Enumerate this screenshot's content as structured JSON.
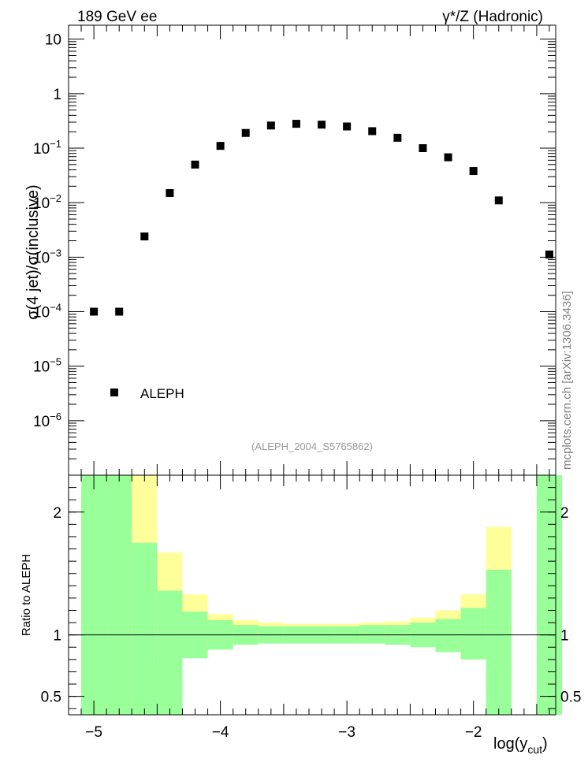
{
  "header": {
    "left": "189 GeV ee",
    "right": "γ*/Z (Hadronic)"
  },
  "watermark": "mcplots.cern.ch [arXiv:1306.3436]",
  "analysis_id": "(ALEPH_2004_S5765862)",
  "colors": {
    "green_band": "#99ff99",
    "yellow_band": "#ffff99",
    "marker": "#000000",
    "watermark": "#808080"
  },
  "chart_data": [
    {
      "type": "scatter",
      "panel": "main",
      "ylabel": "σ(4 jet)/σ(inclusive)",
      "yscale": "log",
      "ylim": [
        1e-07,
        18
      ],
      "xlim": [
        -5.2,
        -1.35
      ],
      "yticks": [
        {
          "value": 10,
          "label": "10"
        },
        {
          "value": 1,
          "label": "1"
        },
        {
          "value": 0.1,
          "base": "10",
          "exp": "−1"
        },
        {
          "value": 0.01,
          "base": "10",
          "exp": "−2"
        },
        {
          "value": 0.001,
          "base": "10",
          "exp": "−3"
        },
        {
          "value": 0.0001,
          "base": "10",
          "exp": "−4"
        },
        {
          "value": 1e-05,
          "base": "10",
          "exp": "−5"
        },
        {
          "value": 1e-06,
          "base": "10",
          "exp": "−6"
        }
      ],
      "legend": {
        "label": "ALEPH",
        "placement": "bottom-left"
      },
      "series": [
        {
          "name": "ALEPH",
          "x": [
            -5.0,
            -4.8,
            -4.6,
            -4.4,
            -4.2,
            -4.0,
            -3.8,
            -3.6,
            -3.4,
            -3.2,
            -3.0,
            -2.8,
            -2.6,
            -2.4,
            -2.2,
            -2.0,
            -1.8,
            -1.4
          ],
          "y": [
            0.0001,
            0.0001,
            0.0024,
            0.015,
            0.05,
            0.11,
            0.19,
            0.26,
            0.28,
            0.27,
            0.25,
            0.205,
            0.155,
            0.1,
            0.068,
            0.038,
            0.011,
            0.00112
          ]
        }
      ]
    },
    {
      "type": "area",
      "panel": "ratio",
      "ylabel": "Ratio to ALEPH",
      "xlabel": "log(y_cut)",
      "xlabel_main": "log(y",
      "xlabel_sub": "cut",
      "xlabel_close": ")",
      "ylim": [
        0.35,
        2.3
      ],
      "xlim": [
        -5.2,
        -1.35
      ],
      "reference_line": 1,
      "yticks": [
        {
          "value": 2,
          "label": "2"
        },
        {
          "value": 1,
          "label": "1"
        },
        {
          "value": 0.5,
          "label": "0.5"
        }
      ],
      "xticks": [
        {
          "value": -5,
          "label": "−5"
        },
        {
          "value": -4,
          "label": "−4"
        },
        {
          "value": -3,
          "label": "−3"
        },
        {
          "value": -2,
          "label": "−2"
        }
      ],
      "bins": [
        {
          "lo": -5.1,
          "hi": -4.9,
          "g": [
            0.35,
            2.3
          ],
          "y": [
            0.35,
            2.3
          ]
        },
        {
          "lo": -4.9,
          "hi": -4.7,
          "g": [
            0.35,
            2.3
          ],
          "y": [
            0.35,
            2.3
          ]
        },
        {
          "lo": -4.7,
          "hi": -4.5,
          "g": [
            0.35,
            1.75
          ],
          "y": [
            0.35,
            2.3
          ]
        },
        {
          "lo": -4.5,
          "hi": -4.3,
          "g": [
            0.35,
            1.36
          ],
          "y": [
            0.75,
            1.67
          ]
        },
        {
          "lo": -4.3,
          "hi": -4.1,
          "g": [
            0.81,
            1.19
          ],
          "y": [
            0.88,
            1.33
          ]
        },
        {
          "lo": -4.1,
          "hi": -3.9,
          "g": [
            0.88,
            1.12
          ],
          "y": [
            0.93,
            1.17
          ]
        },
        {
          "lo": -3.9,
          "hi": -3.7,
          "g": [
            0.92,
            1.08
          ],
          "y": [
            0.95,
            1.12
          ]
        },
        {
          "lo": -3.7,
          "hi": -3.5,
          "g": [
            0.93,
            1.07
          ],
          "y": [
            0.96,
            1.1
          ]
        },
        {
          "lo": -3.5,
          "hi": -3.3,
          "g": [
            0.93,
            1.07
          ],
          "y": [
            0.96,
            1.09
          ]
        },
        {
          "lo": -3.3,
          "hi": -3.1,
          "g": [
            0.93,
            1.07
          ],
          "y": [
            0.96,
            1.09
          ]
        },
        {
          "lo": -3.1,
          "hi": -2.9,
          "g": [
            0.93,
            1.07
          ],
          "y": [
            0.96,
            1.09
          ]
        },
        {
          "lo": -2.9,
          "hi": -2.7,
          "g": [
            0.93,
            1.08
          ],
          "y": [
            0.96,
            1.1
          ]
        },
        {
          "lo": -2.7,
          "hi": -2.5,
          "g": [
            0.92,
            1.08
          ],
          "y": [
            0.95,
            1.11
          ]
        },
        {
          "lo": -2.5,
          "hi": -2.3,
          "g": [
            0.9,
            1.1
          ],
          "y": [
            0.94,
            1.14
          ]
        },
        {
          "lo": -2.3,
          "hi": -2.1,
          "g": [
            0.86,
            1.13
          ],
          "y": [
            0.93,
            1.2
          ]
        },
        {
          "lo": -2.1,
          "hi": -1.9,
          "g": [
            0.8,
            1.22
          ],
          "y": [
            0.89,
            1.33
          ]
        },
        {
          "lo": -1.9,
          "hi": -1.7,
          "g": [
            0.35,
            1.53
          ],
          "y": [
            0.6,
            1.88
          ]
        },
        {
          "lo": -1.5,
          "hi": -1.3,
          "g": [
            0.35,
            2.3
          ],
          "y": [
            0.35,
            2.3
          ]
        }
      ]
    }
  ]
}
